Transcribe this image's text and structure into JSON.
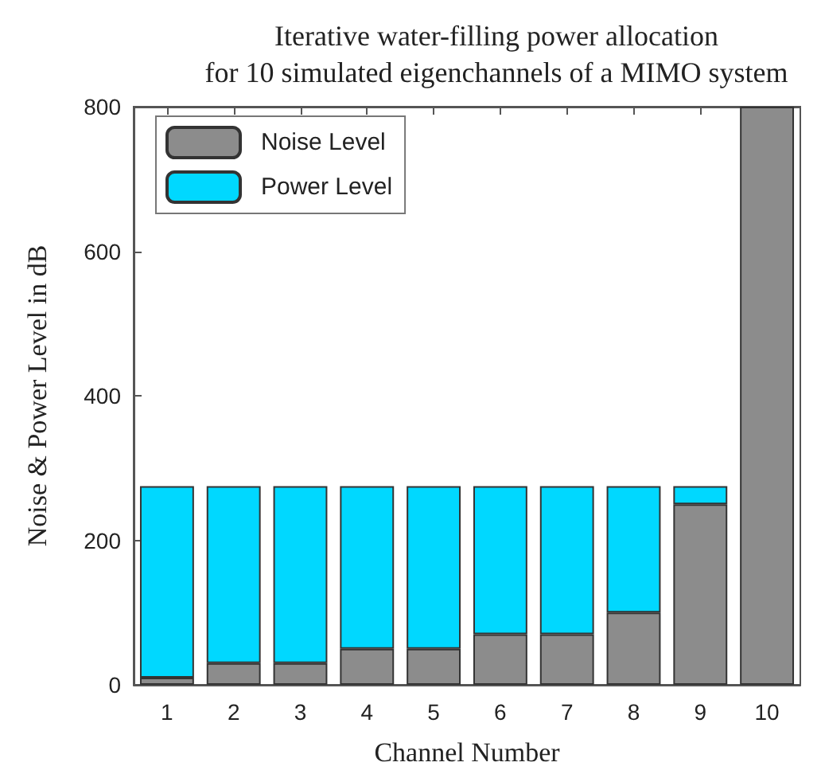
{
  "chart_data": {
    "type": "bar",
    "title": "Iterative water-filling power allocation\nfor 10 simulated eigenchannels of a MIMO system",
    "xlabel": "Channel Number",
    "ylabel": "Noise & Power Level in dB",
    "categories": [
      "1",
      "2",
      "3",
      "4",
      "5",
      "6",
      "7",
      "8",
      "9",
      "10"
    ],
    "series": [
      {
        "name": "Noise Level",
        "color": "#8c8c8c",
        "values": [
          10,
          30,
          30,
          50,
          50,
          70,
          70,
          100,
          250,
          800
        ]
      },
      {
        "name": "Power Level",
        "color": "#00d8ff",
        "values": [
          265,
          245,
          245,
          225,
          225,
          205,
          205,
          175,
          25,
          null
        ]
      }
    ],
    "stacked": true,
    "ylim": [
      0,
      800
    ],
    "yticks": [
      0,
      200,
      400,
      600,
      800
    ],
    "grid": false,
    "legend": "top left"
  }
}
